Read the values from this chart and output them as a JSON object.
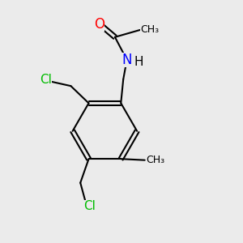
{
  "background_color": "#ebebeb",
  "bond_color": "#000000",
  "bond_width": 1.5,
  "atom_colors": {
    "O": "#ff0000",
    "N": "#0000ff",
    "Cl": "#00bb00",
    "C": "#000000",
    "H": "#000000"
  },
  "font_size": 10,
  "fig_size": [
    3.0,
    3.0
  ],
  "dpi": 100
}
